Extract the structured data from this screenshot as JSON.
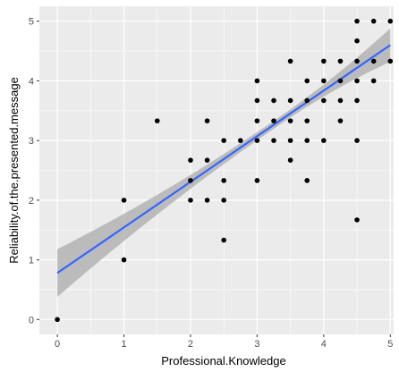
{
  "chart_data": {
    "type": "scatter",
    "xlabel": "Professional.Knowledge",
    "ylabel": "Reliability.of.the.presented.message",
    "xlim": [
      -0.27,
      5.05
    ],
    "ylim": [
      -0.25,
      5.25
    ],
    "x_ticks": [
      0,
      1,
      2,
      3,
      4,
      5
    ],
    "y_ticks": [
      0,
      1,
      2,
      3,
      4,
      5
    ],
    "x_tick_labels": [
      "0",
      "1",
      "2",
      "3",
      "4",
      "5"
    ],
    "y_tick_labels": [
      "0",
      "1",
      "2",
      "3",
      "4",
      "5"
    ],
    "grid": true,
    "panel_background": "#ebebeb",
    "point_color": "#000000",
    "fit_line": {
      "method": "linear",
      "color": "#3366ff",
      "band_color": "#b3b3b3",
      "x": [
        0,
        5
      ],
      "y": [
        0.78,
        4.6
      ],
      "band_lower": [
        0.38,
        4.32
      ],
      "band_upper": [
        1.18,
        4.88
      ]
    },
    "points": [
      [
        0,
        0
      ],
      [
        1,
        1
      ],
      [
        1,
        2
      ],
      [
        1.5,
        3.33
      ],
      [
        2,
        2
      ],
      [
        2,
        2.33
      ],
      [
        2,
        2.67
      ],
      [
        2.25,
        2
      ],
      [
        2.25,
        2.67
      ],
      [
        2.25,
        3.33
      ],
      [
        2.5,
        1.33
      ],
      [
        2.5,
        2
      ],
      [
        2.5,
        2.33
      ],
      [
        2.5,
        3
      ],
      [
        2.75,
        3
      ],
      [
        3,
        2.33
      ],
      [
        3,
        3
      ],
      [
        3,
        3.33
      ],
      [
        3,
        3.67
      ],
      [
        3,
        4
      ],
      [
        3.25,
        3
      ],
      [
        3.25,
        3.33
      ],
      [
        3.25,
        3.67
      ],
      [
        3.5,
        2.67
      ],
      [
        3.5,
        3
      ],
      [
        3.5,
        3.33
      ],
      [
        3.5,
        3.67
      ],
      [
        3.5,
        4.33
      ],
      [
        3.75,
        2.33
      ],
      [
        3.75,
        3
      ],
      [
        3.75,
        3.33
      ],
      [
        3.75,
        3.67
      ],
      [
        3.75,
        4
      ],
      [
        4,
        3
      ],
      [
        4,
        3.67
      ],
      [
        4,
        4
      ],
      [
        4,
        4.33
      ],
      [
        4.25,
        3.33
      ],
      [
        4.25,
        3.67
      ],
      [
        4.25,
        4
      ],
      [
        4.25,
        4.33
      ],
      [
        4.5,
        1.67
      ],
      [
        4.5,
        3
      ],
      [
        4.5,
        3.67
      ],
      [
        4.5,
        4
      ],
      [
        4.5,
        4.33
      ],
      [
        4.5,
        4.67
      ],
      [
        4.5,
        5
      ],
      [
        4.75,
        4
      ],
      [
        4.75,
        4.33
      ],
      [
        4.75,
        5
      ],
      [
        5,
        4.33
      ],
      [
        5,
        5
      ]
    ]
  }
}
